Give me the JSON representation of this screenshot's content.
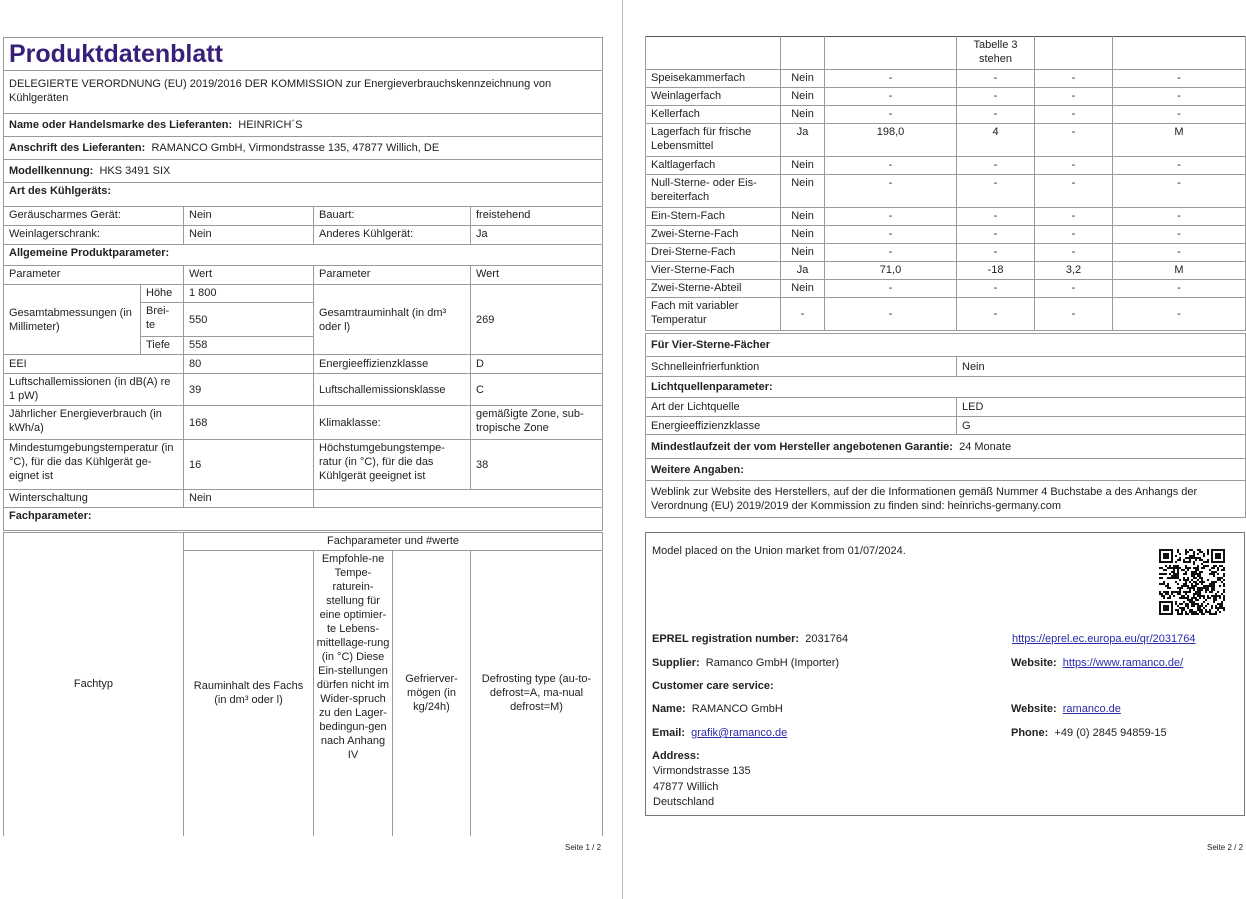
{
  "page1": {
    "title": "Produktdatenblatt",
    "regulation": "DELEGIERTE VERORDNUNG (EU) 2019/2016 DER KOMMISSION zur Energieverbrauchskennzeichnung von Kühlgeräten",
    "supplier_label": "Name oder Handelsmarke des Lieferanten:",
    "supplier_value": "HEINRICH´S",
    "address_label": "Anschrift des Lieferanten:",
    "address_value": "RAMANCO GmbH, Virmondstrasse 135, 47877 Willich, DE",
    "model_label": "Modellkennung:",
    "model_value": "HKS 3491 SIX",
    "type_heading": "Art des Kühlgeräts:",
    "type_rows": [
      [
        "Geräuscharmes Gerät:",
        "Nein",
        "Bauart:",
        "freistehend"
      ],
      [
        "Weinlagerschrank:",
        "Nein",
        "Anderes Kühlgerät:",
        "Ja"
      ]
    ],
    "general_heading": "Allgemeine Produktparameter:",
    "col_headers": [
      "Parameter",
      "Wert",
      "Parameter",
      "Wert"
    ],
    "dimensions": {
      "label": "Gesamtabmessungen (in Millimeter)",
      "rows": [
        [
          "Höhe",
          "1 800"
        ],
        [
          "Brei-te",
          "550"
        ],
        [
          "Tiefe",
          "558"
        ]
      ],
      "volume_label": "Gesamtrauminhalt (in dm³ oder l)",
      "volume_value": "269"
    },
    "param_rows": [
      [
        "EEI",
        "80",
        "Energieeffizienzklasse",
        "D"
      ],
      [
        "Luftschallemissionen (in dB(A) re 1 pW)",
        "39",
        "Luftschallemissionsklasse",
        "C"
      ],
      [
        "Jährlicher Energieverbrauch (in kWh/a)",
        "168",
        "Klimaklasse:",
        "gemäßigte Zone, sub-tropische Zone"
      ],
      [
        "Mindestumgebungstemperatur (in °C), für die das Kühlgerät ge-eignet ist",
        "16",
        "Höchstumgebungstempe-ratur (in °C), für die das Kühlgerät geeignet ist",
        "38"
      ]
    ],
    "winter_label": "Winterschaltung",
    "winter_value": "Nein",
    "compartment_heading": "Fachparameter:",
    "comp_table": {
      "group_header": "Fachparameter und #werte",
      "col_fachtyp": "Fachtyp",
      "col_volume": "Rauminhalt des Fachs (in dm³ oder l)",
      "col_temp": "Empfohle-ne Tempe-raturein-stellung für eine optimier-te Lebens-mittellage-rung (in °C) Diese Ein-stellungen dürfen nicht im Wider-spruch zu den Lager-bedingun-gen nach Anhang IV",
      "col_freeze": "Gefrierver-mögen (in kg/24h)",
      "col_defrost": "Defrosting type (au-to-defrost=A, ma-nual defrost=M)"
    },
    "footer": "Seite 1 / 2"
  },
  "page2": {
    "continuation": "Tabelle 3 stehen",
    "compartments": [
      [
        "Speisekammerfach",
        "Nein",
        "-",
        "-",
        "-",
        "-"
      ],
      [
        "Weinlagerfach",
        "Nein",
        "-",
        "-",
        "-",
        "-"
      ],
      [
        "Kellerfach",
        "Nein",
        "-",
        "-",
        "-",
        "-"
      ],
      [
        "Lagerfach für frische Lebensmittel",
        "Ja",
        "198,0",
        "4",
        "-",
        "M"
      ],
      [
        "Kaltlagerfach",
        "Nein",
        "-",
        "-",
        "-",
        "-"
      ],
      [
        "Null-Sterne- oder Eis-bereiterfach",
        "Nein",
        "-",
        "-",
        "-",
        "-"
      ],
      [
        "Ein-Stern-Fach",
        "Nein",
        "-",
        "-",
        "-",
        "-"
      ],
      [
        "Zwei-Sterne-Fach",
        "Nein",
        "-",
        "-",
        "-",
        "-"
      ],
      [
        "Drei-Sterne-Fach",
        "Nein",
        "-",
        "-",
        "-",
        "-"
      ],
      [
        "Vier-Sterne-Fach",
        "Ja",
        "71,0",
        "-18",
        "3,2",
        "M"
      ],
      [
        "Zwei-Sterne-Abteil",
        "Nein",
        "-",
        "-",
        "-",
        "-"
      ],
      [
        "Fach mit variabler Temperatur",
        "-",
        "-",
        "-",
        "-",
        "-"
      ]
    ],
    "four_star_heading": "Für Vier-Sterne-Fächer",
    "fast_freeze_label": "Schnelleinfrierfunktion",
    "fast_freeze_value": "Nein",
    "light_heading": "Lichtquellenparameter:",
    "light_type_label": "Art der Lichtquelle",
    "light_type_value": "LED",
    "light_class_label": "Energieeffizienzklasse",
    "light_class_value": "G",
    "warranty_label": "Mindestlaufzeit der vom Hersteller angebotenen Garantie:",
    "warranty_value": "24 Monate",
    "more_heading": "Weitere Angaben:",
    "weblink_text": "Weblink zur Website des Herstellers, auf der die Informationen gemäß Nummer 4 Buchstabe a des Anhangs der Verordnung (EU) 2019/2019 der Kommission zu finden sind:  heinrichs-germany.com",
    "eprel": {
      "placed": "Model placed on the Union market from 01/07/2024.",
      "reg_label": "EPREL registration number:",
      "reg_value": "2031764",
      "reg_link": "https://eprel.ec.europa.eu/qr/2031764",
      "supplier_label": "Supplier:",
      "supplier_value": "Ramanco GmbH (Importer)",
      "website_label": "Website:",
      "website_value": "https://www.ramanco.de/",
      "care_heading": "Customer care service:",
      "name_label": "Name:",
      "name_value": "RAMANCO GmbH",
      "website2_label": "Website:",
      "website2_value": "ramanco.de",
      "email_label": "Email:",
      "email_value": "grafik@ramanco.de",
      "phone_label": "Phone:",
      "phone_value": "+49 (0) 2845 94859-15",
      "address_label": "Address:",
      "address_lines": [
        "Virmondstrasse 135",
        "47877 Willich",
        "Deutschland"
      ]
    },
    "footer": "Seite 2 / 2"
  }
}
